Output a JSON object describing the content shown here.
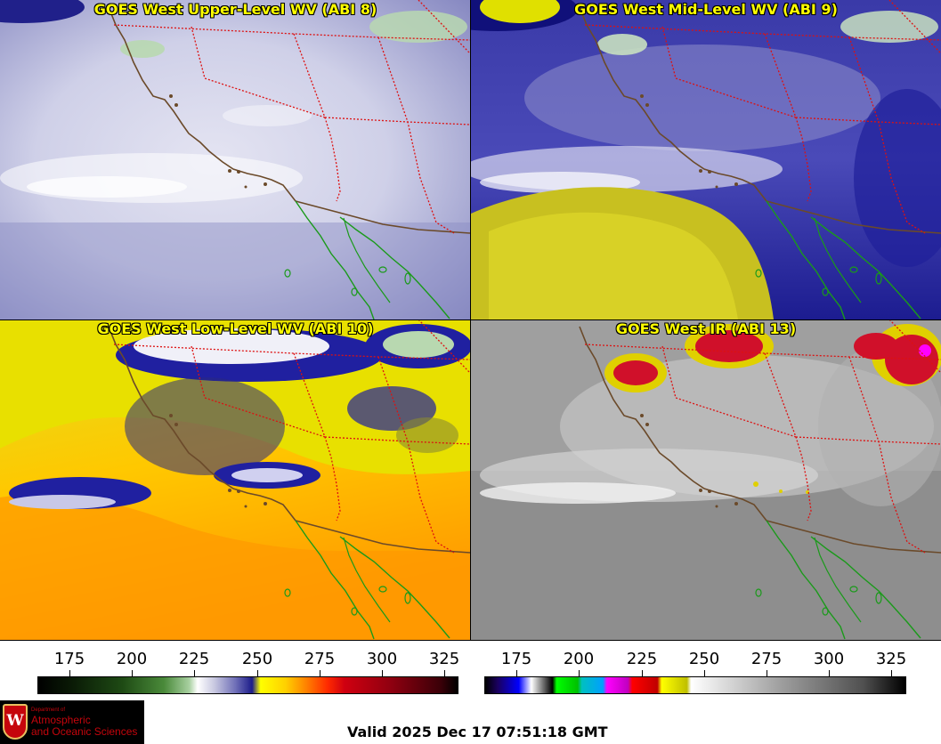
{
  "panels": [
    {
      "title": "GOES West Upper-Level WV (ABI 8)"
    },
    {
      "title": "GOES West Mid-Level WV (ABI 9)"
    },
    {
      "title": "GOES West Low-Level WV (ABI 10)"
    },
    {
      "title": "GOES West IR (ABI 13)"
    }
  ],
  "colorbars": {
    "wv_ticks": [
      "175",
      "200",
      "225",
      "250",
      "275",
      "300",
      "325"
    ],
    "ir_ticks": [
      "175",
      "200",
      "225",
      "250",
      "275",
      "300",
      "325"
    ]
  },
  "logo": {
    "crest": "W",
    "dept": "Department of",
    "name_line1": "Atmospheric",
    "name_line2": "and Oceanic Sciences"
  },
  "valid_time": "Valid 2025 Dec 17 07:51:18 GMT"
}
